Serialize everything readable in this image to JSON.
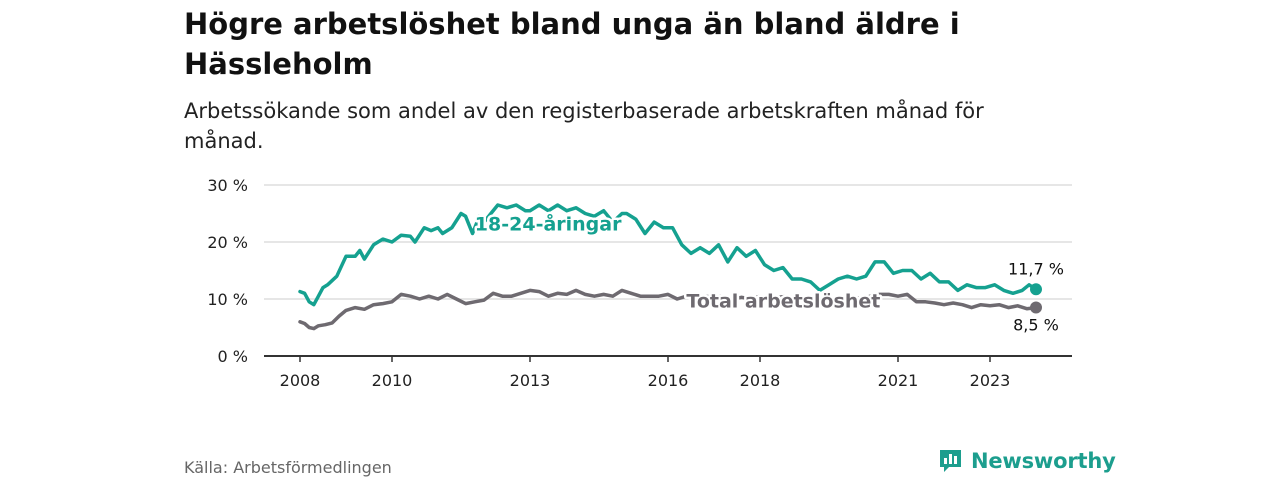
{
  "title": "Högre arbetslöshet bland unga än bland äldre i Hässleholm",
  "subtitle": "Arbetssökande som andel av den registerbaserade arbetskraften månad för månad.",
  "source": "Källa: Arbetsförmedlingen",
  "logo": {
    "name": "Newsworthy",
    "icon": "bar-chart-icon"
  },
  "colors": {
    "youth": "#15a190",
    "total": "#6e6a70",
    "grid": "#dddddd",
    "axis": "#333333",
    "brand": "#1c9e8e"
  },
  "chart_data": {
    "type": "line",
    "title": "Högre arbetslöshet bland unga än bland äldre i Hässleholm",
    "xlabel": "",
    "ylabel": "",
    "xlim": [
      2008.0,
      2024.0
    ],
    "ylim": [
      0,
      30
    ],
    "grid": true,
    "y_ticks": [
      0,
      10,
      20,
      30
    ],
    "y_tick_labels": [
      "0 %",
      "10 %",
      "20 %",
      "30 %"
    ],
    "x_ticks": [
      2008,
      2010,
      2013,
      2016,
      2018,
      2021,
      2023
    ],
    "x_tick_labels": [
      "2008",
      "2010",
      "2013",
      "2016",
      "2018",
      "2021",
      "2023"
    ],
    "series": [
      {
        "name": "18-24-åringar",
        "label": "18-24-åringar",
        "end_label": "11,7 %",
        "x": [
          2008.0,
          2008.1,
          2008.2,
          2008.3,
          2008.4,
          2008.5,
          2008.6,
          2008.8,
          2009.0,
          2009.2,
          2009.3,
          2009.4,
          2009.6,
          2009.8,
          2010.0,
          2010.2,
          2010.4,
          2010.5,
          2010.7,
          2010.85,
          2011.0,
          2011.1,
          2011.3,
          2011.5,
          2011.6,
          2011.75,
          2011.9,
          2012.0,
          2012.15,
          2012.3,
          2012.5,
          2012.7,
          2012.9,
          2013.0,
          2013.2,
          2013.4,
          2013.6,
          2013.8,
          2014.0,
          2014.2,
          2014.4,
          2014.6,
          2014.8,
          2015.0,
          2015.1,
          2015.3,
          2015.5,
          2015.7,
          2015.9,
          2016.1,
          2016.3,
          2016.5,
          2016.7,
          2016.9,
          2017.1,
          2017.3,
          2017.5,
          2017.7,
          2017.9,
          2018.1,
          2018.3,
          2018.5,
          2018.7,
          2018.9,
          2019.1,
          2019.3,
          2019.5,
          2019.7,
          2019.9,
          2020.1,
          2020.3,
          2020.5,
          2020.7,
          2020.9,
          2021.1,
          2021.3,
          2021.5,
          2021.7,
          2021.9,
          2022.1,
          2022.3,
          2022.5,
          2022.7,
          2022.9,
          2023.1,
          2023.3,
          2023.5,
          2023.7,
          2023.85,
          2024.0
        ],
        "values": [
          11.3,
          11.0,
          9.5,
          9.0,
          10.5,
          12.0,
          12.5,
          14.0,
          17.5,
          17.5,
          18.5,
          17.0,
          19.5,
          20.5,
          20.0,
          21.2,
          21.0,
          20.0,
          22.5,
          22.0,
          22.5,
          21.5,
          22.5,
          25.0,
          24.5,
          21.5,
          24.5,
          23.5,
          25.0,
          26.5,
          26.0,
          26.5,
          25.5,
          25.5,
          26.5,
          25.5,
          26.5,
          25.5,
          26.0,
          25.0,
          24.5,
          25.5,
          23.5,
          25.0,
          25.0,
          24.0,
          21.5,
          23.5,
          22.5,
          22.5,
          19.5,
          18.0,
          19.0,
          18.0,
          19.5,
          16.5,
          19.0,
          17.5,
          18.5,
          16.0,
          15.0,
          15.5,
          13.5,
          13.5,
          13.0,
          11.5,
          12.5,
          13.5,
          14.0,
          13.5,
          14.0,
          16.5,
          16.5,
          14.5,
          15.0,
          15.0,
          13.5,
          14.5,
          13.0,
          13.0,
          11.5,
          12.5,
          12.0,
          12.0,
          12.5,
          11.5,
          11.0,
          11.5,
          12.5,
          11.7
        ]
      },
      {
        "name": "Total arbetslöshet",
        "label": "Total arbetslöshet",
        "end_label": "8,5 %",
        "x": [
          2008.0,
          2008.1,
          2008.2,
          2008.3,
          2008.4,
          2008.55,
          2008.7,
          2008.85,
          2009.0,
          2009.2,
          2009.4,
          2009.6,
          2009.8,
          2010.0,
          2010.2,
          2010.4,
          2010.6,
          2010.8,
          2011.0,
          2011.2,
          2011.4,
          2011.6,
          2011.8,
          2012.0,
          2012.2,
          2012.4,
          2012.6,
          2012.8,
          2013.0,
          2013.2,
          2013.4,
          2013.6,
          2013.8,
          2014.0,
          2014.2,
          2014.4,
          2014.6,
          2014.8,
          2015.0,
          2015.2,
          2015.4,
          2015.6,
          2015.8,
          2016.0,
          2016.2,
          2016.4,
          2016.6,
          2016.8,
          2017.0,
          2017.2,
          2017.4,
          2017.6,
          2017.8,
          2018.0,
          2018.2,
          2018.4,
          2018.6,
          2018.8,
          2019.0,
          2019.2,
          2019.4,
          2019.6,
          2019.8,
          2020.0,
          2020.2,
          2020.4,
          2020.6,
          2020.8,
          2021.0,
          2021.2,
          2021.4,
          2021.6,
          2021.8,
          2022.0,
          2022.2,
          2022.4,
          2022.6,
          2022.8,
          2023.0,
          2023.2,
          2023.4,
          2023.6,
          2023.8,
          2024.0
        ],
        "values": [
          6.0,
          5.7,
          5.0,
          4.8,
          5.3,
          5.5,
          5.8,
          7.0,
          8.0,
          8.5,
          8.2,
          9.0,
          9.2,
          9.5,
          10.8,
          10.5,
          10.0,
          10.5,
          10.0,
          10.8,
          10.0,
          9.2,
          9.5,
          9.8,
          11.0,
          10.5,
          10.5,
          11.0,
          11.5,
          11.3,
          10.5,
          11.0,
          10.8,
          11.5,
          10.8,
          10.5,
          10.8,
          10.5,
          11.5,
          11.0,
          10.5,
          10.5,
          10.5,
          10.8,
          10.0,
          10.5,
          10.0,
          10.5,
          10.3,
          10.5,
          10.0,
          10.3,
          10.0,
          10.5,
          10.0,
          10.3,
          10.5,
          10.0,
          10.3,
          10.0,
          10.3,
          10.0,
          10.3,
          10.5,
          10.0,
          10.5,
          10.8,
          10.8,
          10.5,
          10.8,
          9.5,
          9.5,
          9.3,
          9.0,
          9.3,
          9.0,
          8.5,
          9.0,
          8.8,
          9.0,
          8.5,
          8.8,
          8.3,
          8.5
        ]
      }
    ]
  }
}
